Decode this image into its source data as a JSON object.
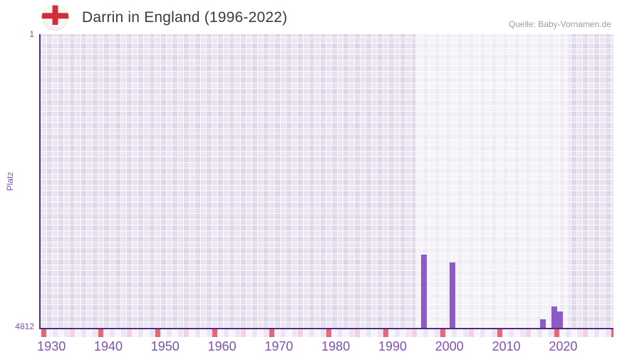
{
  "header": {
    "title": "Darrin in England (1996-2022)",
    "source": "Quelle: Baby-Vornamen.de"
  },
  "y_axis": {
    "title": "Platz",
    "top_label": "1",
    "bottom_label": "4812"
  },
  "chart_data": {
    "type": "bar",
    "title": "Darrin in England (1996-2022)",
    "xlabel": "",
    "ylabel": "Platz",
    "y_axis_range": [
      1,
      4812
    ],
    "y_axis_inverted": true,
    "x_axis_visible_range": [
      1928,
      2028
    ],
    "x_tick_labels": [
      1930,
      1940,
      1950,
      1960,
      1970,
      1980,
      1990,
      2000,
      2010,
      2020
    ],
    "categories": [
      1996,
      2001,
      2017,
      2019,
      2020
    ],
    "values": [
      3612,
      3740,
      4672,
      4459,
      4548
    ],
    "value_meaning": "Platz (rank, lower = more popular)",
    "highlight_band_years": [
      1995,
      2021
    ],
    "grid": "plaid background, white gridlines",
    "legend": "none",
    "bar_color": "#8e5ac8"
  },
  "colors": {
    "bar": "#8e5ac8",
    "axis_line": "#4e2a87",
    "tick_label": "#7e52ad",
    "title_text": "#3b3b3b",
    "source_text": "#9b9b9b",
    "strip_red": "#e0697a",
    "strip_pink": "#f0d3de",
    "flag_red": "#cf2e3a",
    "plot_base": "#ddd6e9"
  }
}
